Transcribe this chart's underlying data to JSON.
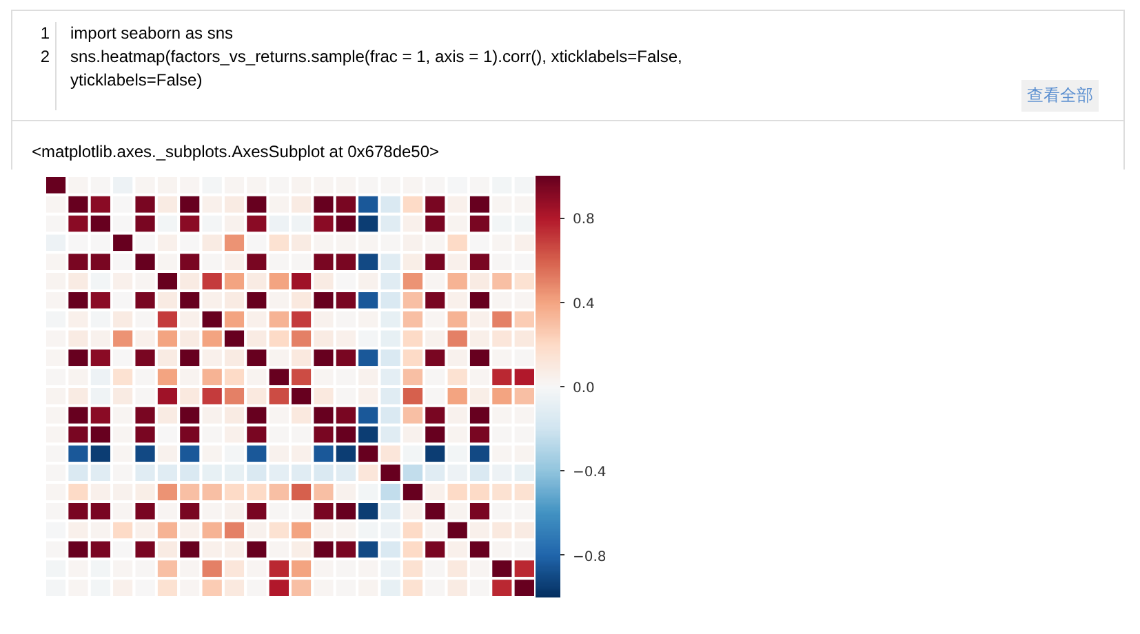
{
  "chart_data": {
    "type": "heatmap",
    "categories": [
      null,
      null,
      null,
      null,
      null,
      null,
      null,
      null,
      null,
      null,
      null,
      null,
      null,
      null,
      null,
      null,
      null,
      null,
      null,
      null,
      null,
      null
    ],
    "y_categories": [
      null,
      null,
      null,
      null,
      null,
      null,
      null,
      null,
      null,
      null,
      null,
      null,
      null,
      null,
      null,
      null,
      null,
      null,
      null,
      null,
      null,
      null
    ],
    "cells": [
      [
        1,
        0.02,
        0.01,
        -0.05,
        0.02,
        0.03,
        0.02,
        -0.02,
        0.02,
        0.02,
        0.01,
        0.03,
        0.02,
        0.02,
        0.01,
        0.01,
        0.02,
        0.01,
        -0.01,
        0.01,
        -0.03,
        -0.02
      ],
      [
        0.02,
        1,
        0.9,
        0,
        0.95,
        0.08,
        1,
        0.05,
        0.08,
        1,
        0.03,
        0.08,
        1,
        0.95,
        -0.85,
        -0.15,
        0.2,
        0.95,
        0.05,
        1,
        0.02,
        0.02
      ],
      [
        0.01,
        0.9,
        1,
        0,
        0.95,
        -0.03,
        0.9,
        -0.02,
        0.04,
        0.9,
        -0.05,
        -0.04,
        0.9,
        1,
        -0.95,
        -0.12,
        0.05,
        0.95,
        0.03,
        0.95,
        -0.03,
        -0.03
      ],
      [
        -0.05,
        0,
        0,
        1,
        0,
        0.05,
        0,
        0.08,
        0.45,
        0,
        0.15,
        0.08,
        0.02,
        0.02,
        0.02,
        0.01,
        0.04,
        0.02,
        0.2,
        0,
        0.02,
        0.05
      ],
      [
        0.02,
        0.95,
        0.95,
        0,
        1,
        0.02,
        0.95,
        0.01,
        0.05,
        0.95,
        0.01,
        0.01,
        0.95,
        0.95,
        -0.9,
        -0.12,
        0.07,
        0.95,
        0.05,
        0.95,
        0.01,
        0
      ],
      [
        0.03,
        0.08,
        -0.03,
        0.05,
        0.02,
        1,
        0.08,
        0.7,
        0.4,
        0.08,
        0.4,
        0.85,
        0.08,
        0,
        0.04,
        -0.12,
        0.45,
        0.02,
        0.35,
        0.08,
        0.3,
        0.15
      ],
      [
        0.02,
        1,
        0.9,
        0,
        0.95,
        0.08,
        1,
        0.05,
        0.08,
        1,
        0.03,
        0.1,
        1,
        0.95,
        -0.85,
        -0.15,
        0.3,
        0.95,
        0.05,
        1,
        0.02,
        0.02
      ],
      [
        -0.02,
        0.05,
        -0.02,
        0.08,
        0.01,
        0.7,
        0.05,
        1,
        0.4,
        0.05,
        0.35,
        0.7,
        0.04,
        0.01,
        0.03,
        -0.08,
        0.3,
        0.02,
        0.35,
        0.05,
        0.5,
        0.25
      ],
      [
        0.02,
        0.08,
        0.04,
        0.45,
        0.05,
        0.4,
        0.08,
        0.4,
        1,
        0.08,
        0.2,
        0.5,
        0.08,
        0.05,
        -0.02,
        -0.08,
        0.2,
        0.04,
        0.5,
        0.06,
        0.12,
        0.1
      ],
      [
        0.02,
        1,
        0.9,
        0,
        0.95,
        0.08,
        1,
        0.05,
        0.08,
        1,
        0.03,
        0.1,
        1,
        0.95,
        -0.85,
        -0.15,
        0.2,
        0.95,
        0.04,
        1,
        0.02,
        0.01
      ],
      [
        0.01,
        0.03,
        -0.05,
        0.15,
        0.01,
        0.4,
        0.03,
        0.35,
        0.2,
        0.03,
        1,
        0.65,
        0.02,
        0.01,
        0.04,
        -0.1,
        0.3,
        0.01,
        0.15,
        0.02,
        0.75,
        0.8
      ],
      [
        0.03,
        0.08,
        -0.04,
        0.08,
        0.01,
        0.85,
        0.1,
        0.7,
        0.5,
        0.1,
        0.65,
        1,
        0.1,
        0.01,
        0.05,
        -0.12,
        0.6,
        0.01,
        0.4,
        0.07,
        0.4,
        0.3
      ],
      [
        0.02,
        1,
        0.9,
        0.02,
        0.95,
        0.08,
        1,
        0.04,
        0.08,
        1,
        0.02,
        0.1,
        1,
        0.95,
        -0.85,
        -0.15,
        0.3,
        0.95,
        0.04,
        1,
        0.02,
        0.02
      ],
      [
        0.02,
        0.95,
        1,
        0.02,
        0.95,
        0,
        0.95,
        0.01,
        0.05,
        0.95,
        0.01,
        0.01,
        0.95,
        1,
        -0.95,
        -0.12,
        0.04,
        1,
        0.03,
        0.95,
        0.01,
        0.01
      ],
      [
        0.01,
        -0.85,
        -0.95,
        0.02,
        -0.9,
        0.04,
        -0.85,
        0.03,
        -0.02,
        -0.85,
        0.04,
        0.05,
        -0.85,
        -0.95,
        1,
        0.12,
        -0.03,
        -0.95,
        -0.03,
        -0.9,
        0.02,
        0.03
      ],
      [
        0.01,
        -0.15,
        -0.12,
        0.01,
        -0.12,
        -0.12,
        -0.15,
        -0.08,
        -0.08,
        -0.15,
        -0.1,
        -0.12,
        -0.15,
        -0.12,
        0.12,
        1,
        -0.25,
        -0.12,
        -0.05,
        -0.15,
        -0.05,
        -0.08
      ],
      [
        0.02,
        0.2,
        0.05,
        0.04,
        0.07,
        0.45,
        0.3,
        0.3,
        0.2,
        0.2,
        0.3,
        0.6,
        0.3,
        0.04,
        -0.03,
        -0.25,
        1,
        0.05,
        0.2,
        0.2,
        0.15,
        0.15
      ],
      [
        0.01,
        0.95,
        0.95,
        0.02,
        0.95,
        0.02,
        0.95,
        0.02,
        0.04,
        0.95,
        0.01,
        0.01,
        0.95,
        1,
        -0.95,
        -0.12,
        0.05,
        1,
        0.03,
        0.95,
        0.01,
        0.01
      ],
      [
        -0.01,
        0.05,
        0.03,
        0.2,
        0.05,
        0.35,
        0.05,
        0.35,
        0.5,
        0.04,
        0.15,
        0.4,
        0.04,
        0.03,
        -0.03,
        -0.05,
        0.2,
        0.03,
        1,
        0.05,
        0.1,
        0.08
      ],
      [
        0.01,
        1,
        0.95,
        0,
        0.95,
        0.08,
        1,
        0.05,
        0.06,
        1,
        0.02,
        0.07,
        1,
        0.95,
        -0.9,
        -0.15,
        0.2,
        0.95,
        0.05,
        1,
        0.02,
        0.01
      ],
      [
        -0.03,
        0.02,
        -0.03,
        0.02,
        0.01,
        0.3,
        0.02,
        0.5,
        0.12,
        0.02,
        0.75,
        0.4,
        0.02,
        0.01,
        0.02,
        -0.05,
        0.15,
        0.01,
        0.1,
        0.02,
        1,
        0.75
      ],
      [
        -0.02,
        0.02,
        -0.03,
        0.05,
        0,
        0.15,
        0.02,
        0.25,
        0.1,
        0.01,
        0.8,
        0.3,
        0.02,
        0.01,
        0.03,
        -0.08,
        0.15,
        0.01,
        0.08,
        0.01,
        0.75,
        1
      ]
    ],
    "clim": [
      -1,
      1
    ],
    "cticks": [
      {
        "value": -0.8,
        "label": "−0.8"
      },
      {
        "value": -0.4,
        "label": "−0.4"
      },
      {
        "value": 0,
        "label": "0.0"
      },
      0.4,
      0.8
    ],
    "tick_labels": false,
    "annotations": [
      "1",
      "import seaborn as sns",
      "2",
      "sns.heatmap(factors_vs_returns.sample(frac = 1, axis = 1).corr(), xticklabels=False,",
      "yticklabels=False)",
      "查看全部",
      "<matplotlib.axes._subplots.AxesSubplot at 0x678de50>"
    ]
  }
}
